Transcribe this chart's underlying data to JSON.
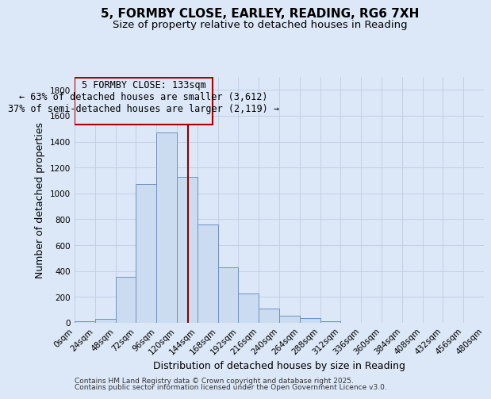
{
  "title": "5, FORMBY CLOSE, EARLEY, READING, RG6 7XH",
  "subtitle": "Size of property relative to detached houses in Reading",
  "xlabel": "Distribution of detached houses by size in Reading",
  "ylabel": "Number of detached properties",
  "bin_edges": [
    0,
    24,
    48,
    72,
    96,
    120,
    144,
    168,
    192,
    216,
    240,
    264,
    288,
    312,
    336,
    360,
    384,
    408,
    432,
    456,
    480
  ],
  "bar_heights": [
    15,
    30,
    355,
    1070,
    1470,
    1130,
    760,
    430,
    225,
    110,
    55,
    35,
    15,
    0,
    0,
    0,
    0,
    0,
    0,
    0
  ],
  "property_size": 133,
  "bar_color": "#ccdcf0",
  "bar_edge_color": "#7090c0",
  "vline_color": "#8b0000",
  "annotation_box_edge": "#aa0000",
  "annotation_line1": "5 FORMBY CLOSE: 133sqm",
  "annotation_line2": "← 63% of detached houses are smaller (3,612)",
  "annotation_line3": "37% of semi-detached houses are larger (2,119) →",
  "ylim": [
    0,
    1900
  ],
  "yticks": [
    0,
    200,
    400,
    600,
    800,
    1000,
    1200,
    1400,
    1600,
    1800
  ],
  "grid_color": "#c0cce0",
  "background_color": "#dce8f8",
  "footer_line1": "Contains HM Land Registry data © Crown copyright and database right 2025.",
  "footer_line2": "Contains public sector information licensed under the Open Government Licence v3.0.",
  "title_fontsize": 11,
  "subtitle_fontsize": 9.5,
  "axis_label_fontsize": 9,
  "tick_fontsize": 7.5,
  "annotation_fontsize": 8.5,
  "footer_fontsize": 6.5
}
